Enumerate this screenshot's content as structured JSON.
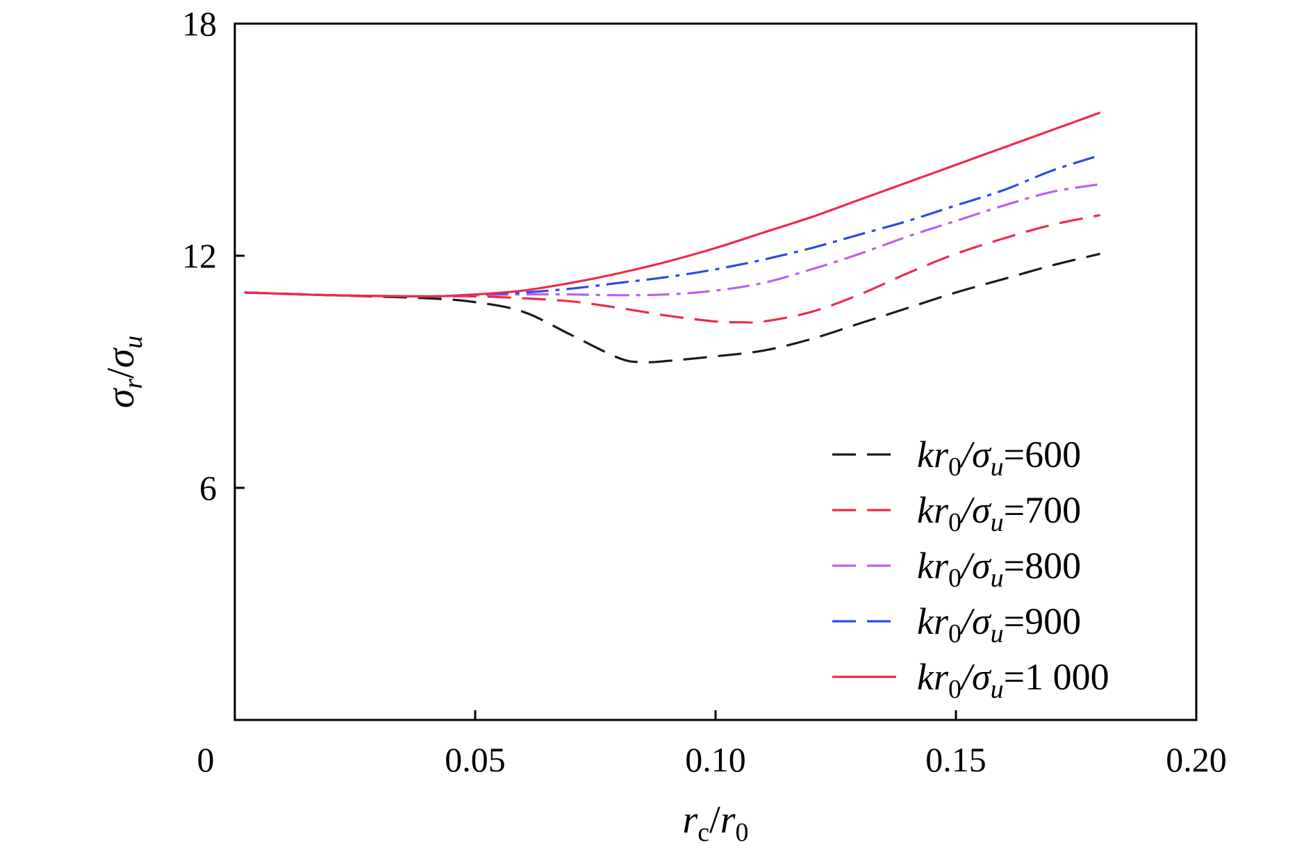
{
  "chart_data": {
    "type": "line",
    "xlabel": {
      "main": "r",
      "sub": "c",
      "sep": "/",
      "main2": "r",
      "sub2": "0"
    },
    "ylabel": {
      "main": "σ",
      "sub": "r",
      "sep": "/",
      "main2": "σ",
      "sub2": "u"
    },
    "xlim": [
      0,
      0.2
    ],
    "ylim": [
      0,
      18
    ],
    "xticks": [
      {
        "value": 0,
        "label": "0"
      },
      {
        "value": 0.05,
        "label": "0.05"
      },
      {
        "value": 0.1,
        "label": "0.10"
      },
      {
        "value": 0.15,
        "label": "0.15"
      },
      {
        "value": 0.2,
        "label": "0.20"
      }
    ],
    "yticks": [
      {
        "value": 6,
        "label": "6"
      },
      {
        "value": 12,
        "label": "12"
      },
      {
        "value": 18,
        "label": "18"
      }
    ],
    "legend_position": "bottom-right",
    "series": [
      {
        "name_parts": {
          "a": "kr",
          "b": "0",
          "c": "/σ",
          "d": "u",
          "e": "=600"
        },
        "color": "#1a1a1a",
        "dash": "34,16",
        "x": [
          0.002,
          0.02,
          0.04,
          0.05,
          0.06,
          0.07,
          0.08,
          0.085,
          0.09,
          0.1,
          0.11,
          0.12,
          0.13,
          0.14,
          0.15,
          0.16,
          0.17,
          0.18
        ],
        "y": [
          11.05,
          10.98,
          10.9,
          10.8,
          10.55,
          9.95,
          9.35,
          9.25,
          9.28,
          9.4,
          9.55,
          9.85,
          10.25,
          10.65,
          11.05,
          11.4,
          11.75,
          12.05
        ]
      },
      {
        "name_parts": {
          "a": "kr",
          "b": "0",
          "c": "/σ",
          "d": "u",
          "e": "=700"
        },
        "color": "#ee2a4a",
        "dash": "34,16",
        "x": [
          0.002,
          0.02,
          0.04,
          0.05,
          0.06,
          0.07,
          0.08,
          0.09,
          0.1,
          0.105,
          0.11,
          0.12,
          0.13,
          0.14,
          0.15,
          0.16,
          0.17,
          0.18
        ],
        "y": [
          11.05,
          10.98,
          10.95,
          10.95,
          10.9,
          10.82,
          10.65,
          10.45,
          10.3,
          10.28,
          10.3,
          10.55,
          11.0,
          11.55,
          12.05,
          12.45,
          12.8,
          13.05
        ]
      },
      {
        "name_parts": {
          "a": "kr",
          "b": "0",
          "c": "/σ",
          "d": "u",
          "e": "=800"
        },
        "color": "#b860f0",
        "dash": "32,10,6,10",
        "x": [
          0.002,
          0.02,
          0.04,
          0.05,
          0.06,
          0.07,
          0.08,
          0.09,
          0.1,
          0.11,
          0.12,
          0.13,
          0.14,
          0.15,
          0.16,
          0.17,
          0.18
        ],
        "y": [
          11.05,
          10.98,
          10.95,
          10.98,
          11.0,
          11.0,
          10.98,
          11.0,
          11.1,
          11.3,
          11.65,
          12.05,
          12.5,
          12.9,
          13.3,
          13.65,
          13.85
        ]
      },
      {
        "name_parts": {
          "a": "kr",
          "b": "0",
          "c": "/σ",
          "d": "u",
          "e": "=900"
        },
        "color": "#2a4ae6",
        "dash": "32,10,6,10",
        "x": [
          0.002,
          0.02,
          0.04,
          0.05,
          0.06,
          0.07,
          0.08,
          0.09,
          0.1,
          0.11,
          0.12,
          0.13,
          0.14,
          0.15,
          0.16,
          0.17,
          0.18
        ],
        "y": [
          11.05,
          10.98,
          10.95,
          11.0,
          11.05,
          11.15,
          11.3,
          11.45,
          11.65,
          11.9,
          12.2,
          12.55,
          12.9,
          13.3,
          13.7,
          14.2,
          14.6
        ]
      },
      {
        "name_parts": {
          "a": "kr",
          "b": "0",
          "c": "/σ",
          "d": "u",
          "e": "=1 000"
        },
        "color": "#ee2a4a",
        "dash": "",
        "x": [
          0.002,
          0.02,
          0.04,
          0.05,
          0.06,
          0.07,
          0.08,
          0.09,
          0.1,
          0.11,
          0.12,
          0.13,
          0.14,
          0.15,
          0.16,
          0.17,
          0.18
        ],
        "y": [
          11.05,
          10.98,
          10.95,
          11.0,
          11.1,
          11.3,
          11.55,
          11.85,
          12.2,
          12.6,
          13.0,
          13.45,
          13.9,
          14.35,
          14.8,
          15.25,
          15.7
        ]
      }
    ]
  }
}
